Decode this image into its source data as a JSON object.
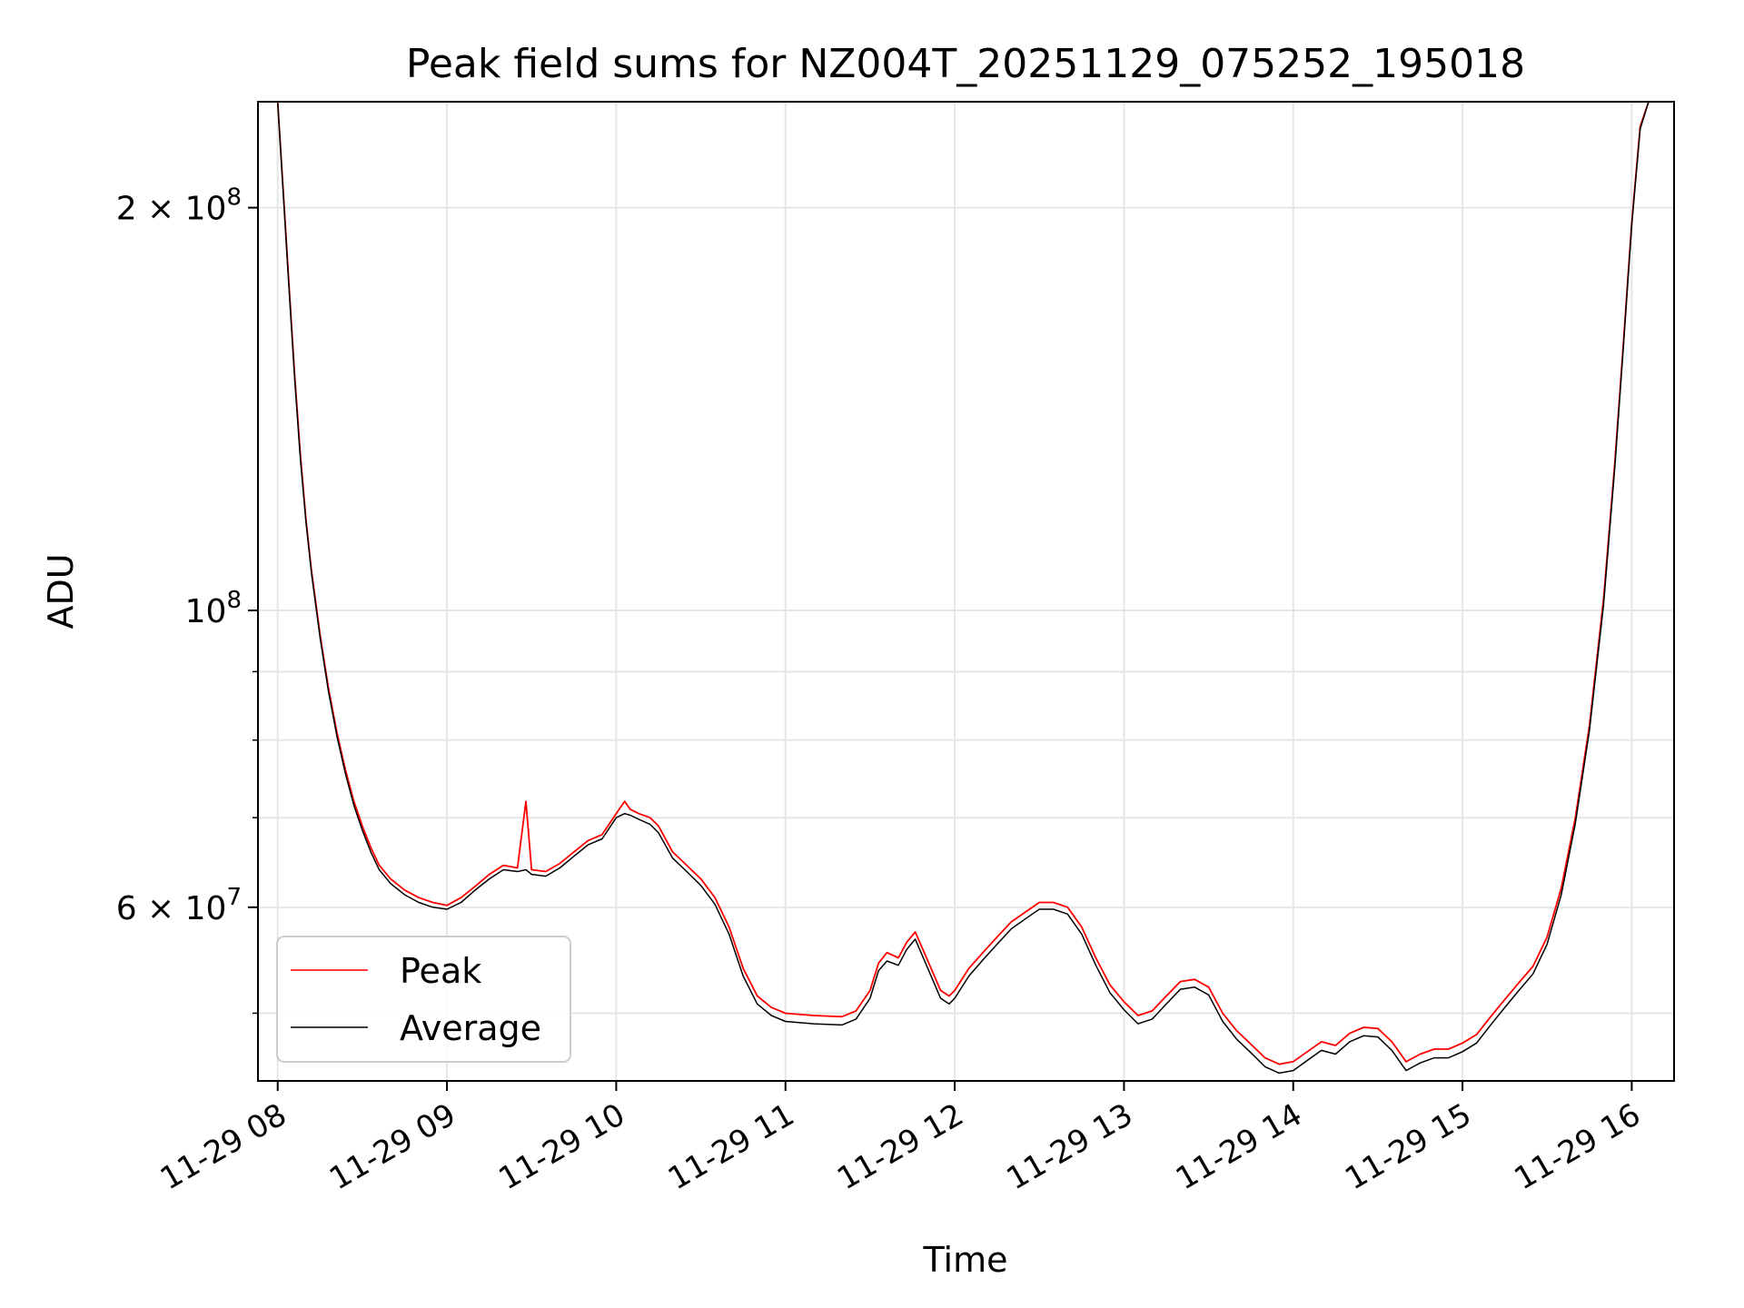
{
  "chart_data": {
    "type": "line",
    "title": "Peak field sums for NZ004T_20251129_075252_195018",
    "xlabel": "Time",
    "ylabel": "ADU",
    "x_unit": "time of day on 2025-11-29 (HH:MM)",
    "xlim": [
      "07:53",
      "16:15"
    ],
    "x_ticks": [
      {
        "label": "11-29 08",
        "value": "08:00"
      },
      {
        "label": "11-29 09",
        "value": "09:00"
      },
      {
        "label": "11-29 10",
        "value": "10:00"
      },
      {
        "label": "11-29 11",
        "value": "11:00"
      },
      {
        "label": "11-29 12",
        "value": "12:00"
      },
      {
        "label": "11-29 13",
        "value": "13:00"
      },
      {
        "label": "11-29 14",
        "value": "14:00"
      },
      {
        "label": "11-29 15",
        "value": "15:00"
      },
      {
        "label": "11-29 16",
        "value": "16:00"
      }
    ],
    "y_scale": "log",
    "ylim": [
      44500000,
      240000000
    ],
    "y_major_ticks": [
      {
        "value": 200000000,
        "mantissa": "2",
        "exp": "8"
      },
      {
        "value": 100000000,
        "mantissa": "",
        "exp": "8"
      },
      {
        "value": 60000000,
        "mantissa": "6",
        "exp": "7"
      }
    ],
    "y_minor_ticks": [
      90000000,
      80000000,
      70000000,
      50000000
    ],
    "grid": true,
    "legend_position": "lower-left",
    "series": [
      {
        "name": "Peak",
        "color": "#ff0000",
        "x": [
          "08:00",
          "08:02",
          "08:04",
          "08:06",
          "08:08",
          "08:10",
          "08:12",
          "08:15",
          "08:18",
          "08:21",
          "08:24",
          "08:27",
          "08:30",
          "08:33",
          "08:36",
          "08:40",
          "08:45",
          "08:50",
          "08:55",
          "09:00",
          "09:05",
          "09:10",
          "09:15",
          "09:20",
          "09:25",
          "09:28",
          "09:30",
          "09:35",
          "09:40",
          "09:45",
          "09:50",
          "09:55",
          "10:00",
          "10:03",
          "10:05",
          "10:08",
          "10:12",
          "10:15",
          "10:20",
          "10:25",
          "10:30",
          "10:35",
          "10:40",
          "10:45",
          "10:50",
          "10:55",
          "11:00",
          "11:10",
          "11:20",
          "11:25",
          "11:30",
          "11:33",
          "11:36",
          "11:40",
          "11:43",
          "11:46",
          "11:50",
          "11:55",
          "11:58",
          "12:00",
          "12:05",
          "12:10",
          "12:15",
          "12:20",
          "12:25",
          "12:30",
          "12:35",
          "12:40",
          "12:45",
          "12:50",
          "12:55",
          "13:00",
          "13:05",
          "13:10",
          "13:15",
          "13:20",
          "13:25",
          "13:30",
          "13:35",
          "13:40",
          "13:45",
          "13:50",
          "13:55",
          "14:00",
          "14:05",
          "14:10",
          "14:15",
          "14:20",
          "14:25",
          "14:30",
          "14:35",
          "14:40",
          "14:45",
          "14:50",
          "14:55",
          "15:00",
          "15:05",
          "15:10",
          "15:15",
          "15:20",
          "15:25",
          "15:30",
          "15:35",
          "15:40",
          "15:45",
          "15:50",
          "15:54",
          "15:57",
          "16:00",
          "16:03",
          "16:06"
        ],
        "y": [
          240000000,
          205000000,
          175000000,
          150000000,
          131000000,
          117000000,
          107000000,
          96000000,
          87500000,
          81000000,
          76000000,
          72000000,
          69000000,
          66500000,
          64500000,
          63000000,
          61800000,
          61000000,
          60500000,
          60200000,
          61000000,
          62200000,
          63500000,
          64500000,
          64200000,
          72000000,
          64000000,
          63800000,
          64700000,
          66000000,
          67300000,
          68000000,
          70500000,
          72000000,
          71000000,
          70500000,
          70000000,
          69000000,
          66000000,
          64500000,
          63000000,
          61000000,
          58000000,
          54000000,
          51500000,
          50500000,
          50000000,
          49800000,
          49700000,
          50200000,
          52000000,
          54500000,
          55500000,
          55000000,
          56500000,
          57500000,
          55000000,
          52000000,
          51500000,
          52000000,
          54000000,
          55500000,
          57000000,
          58500000,
          59500000,
          60500000,
          60500000,
          60000000,
          58000000,
          55000000,
          52500000,
          51000000,
          49800000,
          50200000,
          51500000,
          52800000,
          53000000,
          52300000,
          50000000,
          48500000,
          47400000,
          46300000,
          45800000,
          46000000,
          46800000,
          47600000,
          47300000,
          48300000,
          48800000,
          48700000,
          47600000,
          46000000,
          46600000,
          47000000,
          47000000,
          47500000,
          48200000,
          49700000,
          51200000,
          52700000,
          54200000,
          57000000,
          62000000,
          70000000,
          82000000,
          102000000,
          129000000,
          158000000,
          195000000,
          230000000,
          240000000
        ]
      },
      {
        "name": "Average",
        "color": "#000000",
        "x": [
          "08:00",
          "08:02",
          "08:04",
          "08:06",
          "08:08",
          "08:10",
          "08:12",
          "08:15",
          "08:18",
          "08:21",
          "08:24",
          "08:27",
          "08:30",
          "08:33",
          "08:36",
          "08:40",
          "08:45",
          "08:50",
          "08:55",
          "09:00",
          "09:05",
          "09:10",
          "09:15",
          "09:20",
          "09:25",
          "09:28",
          "09:30",
          "09:35",
          "09:40",
          "09:45",
          "09:50",
          "09:55",
          "10:00",
          "10:03",
          "10:05",
          "10:08",
          "10:12",
          "10:15",
          "10:20",
          "10:25",
          "10:30",
          "10:35",
          "10:40",
          "10:45",
          "10:50",
          "10:55",
          "11:00",
          "11:10",
          "11:20",
          "11:25",
          "11:30",
          "11:33",
          "11:36",
          "11:40",
          "11:43",
          "11:46",
          "11:50",
          "11:55",
          "11:58",
          "12:00",
          "12:05",
          "12:10",
          "12:15",
          "12:20",
          "12:25",
          "12:30",
          "12:35",
          "12:40",
          "12:45",
          "12:50",
          "12:55",
          "13:00",
          "13:05",
          "13:10",
          "13:15",
          "13:20",
          "13:25",
          "13:30",
          "13:35",
          "13:40",
          "13:45",
          "13:50",
          "13:55",
          "14:00",
          "14:05",
          "14:10",
          "14:15",
          "14:20",
          "14:25",
          "14:30",
          "14:35",
          "14:40",
          "14:45",
          "14:50",
          "14:55",
          "15:00",
          "15:05",
          "15:10",
          "15:15",
          "15:20",
          "15:25",
          "15:30",
          "15:35",
          "15:40",
          "15:45",
          "15:50",
          "15:54",
          "15:57",
          "16:00",
          "16:03",
          "16:06"
        ],
        "y": [
          240000000,
          204000000,
          174000000,
          149000000,
          130000000,
          116500000,
          106500000,
          95500000,
          87000000,
          80500000,
          75500000,
          71500000,
          68500000,
          66000000,
          64000000,
          62500000,
          61300000,
          60500000,
          60000000,
          59800000,
          60500000,
          61800000,
          63000000,
          64000000,
          63800000,
          64000000,
          63500000,
          63300000,
          64200000,
          65500000,
          66800000,
          67500000,
          70000000,
          70500000,
          70300000,
          69800000,
          69200000,
          68200000,
          65300000,
          63800000,
          62300000,
          60300000,
          57300000,
          53300000,
          50800000,
          49800000,
          49300000,
          49100000,
          49000000,
          49500000,
          51300000,
          53800000,
          54700000,
          54300000,
          55800000,
          56800000,
          54300000,
          51300000,
          50800000,
          51300000,
          53300000,
          54800000,
          56300000,
          57800000,
          58800000,
          59800000,
          59800000,
          59300000,
          57300000,
          54300000,
          51800000,
          50300000,
          49100000,
          49500000,
          50800000,
          52100000,
          52300000,
          51600000,
          49300000,
          47800000,
          46700000,
          45600000,
          45100000,
          45300000,
          46100000,
          46900000,
          46600000,
          47600000,
          48100000,
          48000000,
          46900000,
          45300000,
          45900000,
          46300000,
          46300000,
          46800000,
          47500000,
          49000000,
          50500000,
          52000000,
          53500000,
          56300000,
          61300000,
          69300000,
          81300000,
          101000000,
          128000000,
          157000000,
          194000000,
          229000000,
          240000000
        ]
      }
    ]
  }
}
